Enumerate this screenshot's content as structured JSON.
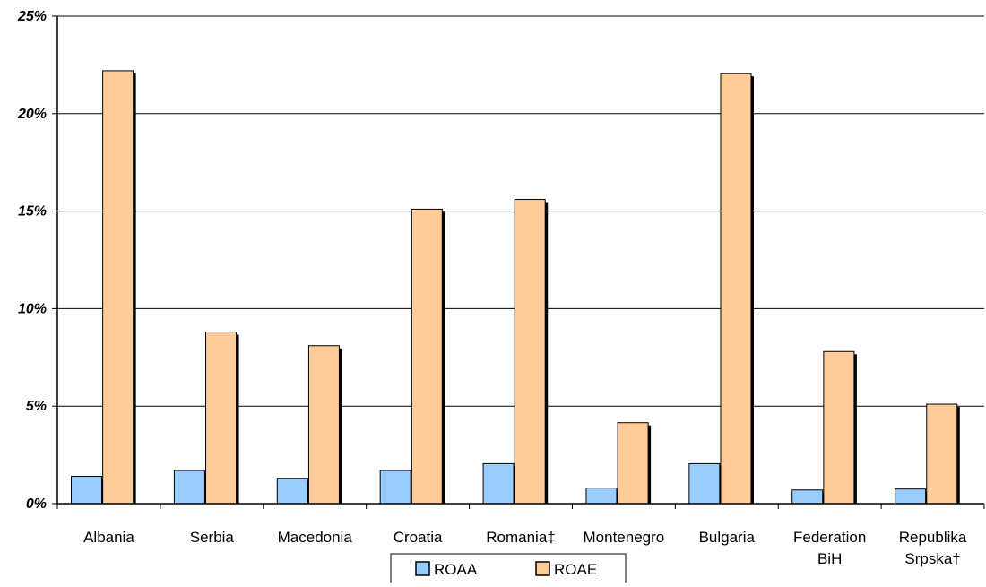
{
  "chart_data": {
    "type": "bar",
    "categories": [
      [
        "Albania"
      ],
      [
        "Serbia"
      ],
      [
        "Macedonia"
      ],
      [
        "Croatia"
      ],
      [
        "Romania‡"
      ],
      [
        "Montenegro"
      ],
      [
        "Bulgaria"
      ],
      [
        "Federation",
        "BiH"
      ],
      [
        "Republika",
        "Srpska†"
      ]
    ],
    "series": [
      {
        "name": "ROAA",
        "color": "#99ccff",
        "values": [
          1.4,
          1.7,
          1.3,
          1.7,
          2.05,
          0.8,
          2.05,
          0.7,
          0.75
        ]
      },
      {
        "name": "ROAE",
        "color": "#ffcc99",
        "values": [
          22.2,
          8.8,
          8.1,
          15.1,
          15.6,
          4.15,
          22.05,
          7.8,
          5.1
        ]
      }
    ],
    "ylim": [
      0,
      25
    ],
    "yticks": [
      "0%",
      "5%",
      "10%",
      "15%",
      "20%",
      "25%"
    ],
    "grid": true,
    "legend": "bottom-center",
    "title": "",
    "xlabel": "",
    "ylabel": ""
  }
}
